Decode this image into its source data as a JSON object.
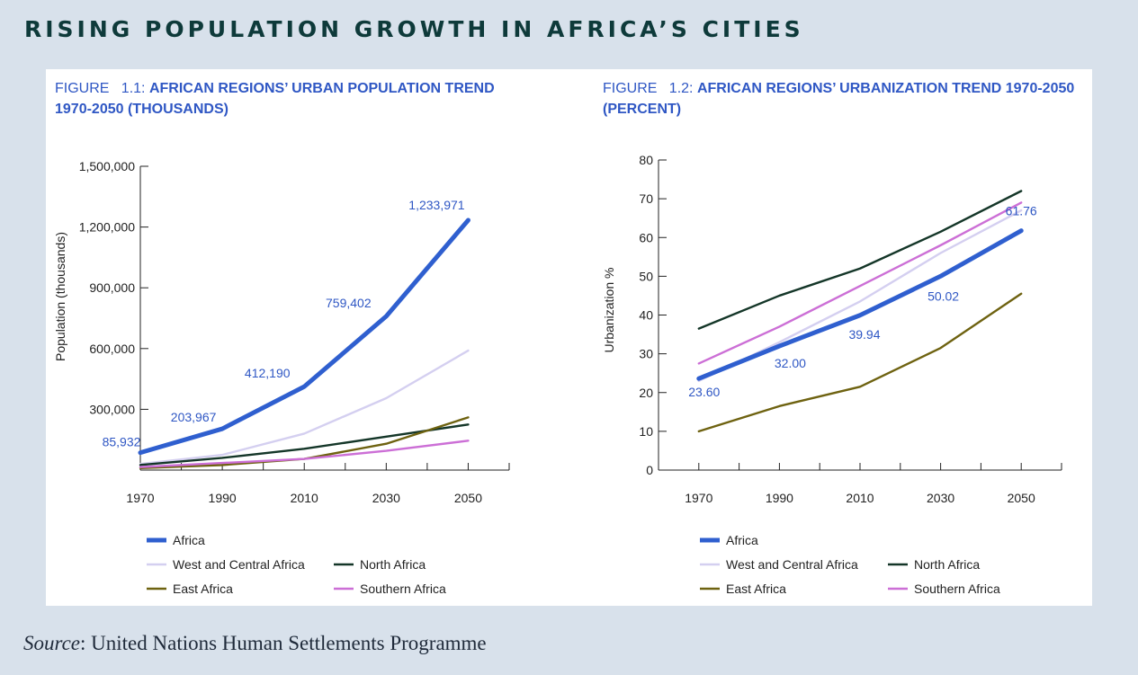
{
  "page": {
    "title": "RISING POPULATION GROWTH IN AFRICA’S CITIES",
    "source_label": "Source",
    "source_text": ": United Nations Human Settlements Programme"
  },
  "colors": {
    "background": "#d8e1eb",
    "panel": "#ffffff",
    "title_blue": "#2f57c4",
    "Africa": "#2f5fcf",
    "West and Central Africa": "#d4cff0",
    "North Africa": "#143628",
    "East Africa": "#6e6210",
    "Southern Africa": "#cc6fd6"
  },
  "figures": [
    {
      "fig_word": "FIGURE",
      "fig_number": "1.1:",
      "fig_title_line1": "AFRICAN REGIONS’ URBAN POPULATION TREND",
      "fig_title_line2": "1970-2050 (THOUSANDS)"
    },
    {
      "fig_word": "FIGURE",
      "fig_number": "1.2:",
      "fig_title_line1": "AFRICAN REGIONS’ URBANIZATION TREND 1970-2050",
      "fig_title_line2": "(PERCENT)"
    }
  ],
  "chart_data": [
    {
      "type": "line",
      "title": "AFRICAN REGIONS’ URBAN POPULATION TREND 1970-2050 (THOUSANDS)",
      "xlabel": "",
      "ylabel": "Population (thousands)",
      "x": [
        1970,
        1990,
        2010,
        2030,
        2050
      ],
      "xlim": [
        1970,
        2060
      ],
      "ylim": [
        0,
        1500000
      ],
      "yticks": [
        300000,
        600000,
        900000,
        1200000,
        1500000
      ],
      "ytick_labels": [
        "300,000",
        "600,000",
        "900,000",
        "1,200,000",
        "1,500,000"
      ],
      "grid": false,
      "legend_position": "bottom",
      "series": [
        {
          "name": "Africa",
          "values": [
            85932,
            203967,
            412190,
            759402,
            1233971
          ],
          "labels": [
            "85,932",
            "203,967",
            "412,190",
            "759,402",
            "1,233,971"
          ]
        },
        {
          "name": "West and Central Africa",
          "values": [
            30000,
            75000,
            180000,
            355000,
            590000
          ]
        },
        {
          "name": "North Africa",
          "values": [
            25000,
            60000,
            105000,
            165000,
            225000
          ]
        },
        {
          "name": "East Africa",
          "values": [
            10000,
            25000,
            55000,
            130000,
            260000
          ]
        },
        {
          "name": "Southern Africa",
          "values": [
            15000,
            35000,
            55000,
            95000,
            145000
          ]
        }
      ]
    },
    {
      "type": "line",
      "title": "AFRICAN REGIONS’ URBANIZATION TREND 1970-2050 (PERCENT)",
      "xlabel": "",
      "ylabel": "Urbanization %",
      "x": [
        1970,
        1990,
        2010,
        2030,
        2050
      ],
      "xlim": [
        1960,
        2060
      ],
      "ylim": [
        0,
        80
      ],
      "yticks": [
        0,
        10,
        20,
        30,
        40,
        50,
        60,
        70,
        80
      ],
      "ytick_labels": [
        "0",
        "10",
        "20",
        "30",
        "40",
        "50",
        "60",
        "70",
        "80"
      ],
      "grid": false,
      "legend_position": "bottom",
      "series": [
        {
          "name": "Africa",
          "values": [
            23.6,
            32.0,
            39.94,
            50.02,
            61.76
          ],
          "labels": [
            "23.60",
            "32.00",
            "39.94",
            "50.02",
            "61.76"
          ]
        },
        {
          "name": "West and Central Africa",
          "values": [
            23,
            33,
            43.5,
            56,
            67
          ]
        },
        {
          "name": "North Africa",
          "values": [
            36.5,
            45,
            52,
            61.5,
            72
          ]
        },
        {
          "name": "East Africa",
          "values": [
            10,
            16.5,
            21.5,
            31.5,
            45.5
          ]
        },
        {
          "name": "Southern Africa",
          "values": [
            27.5,
            37,
            47.5,
            58,
            69
          ]
        }
      ]
    }
  ]
}
